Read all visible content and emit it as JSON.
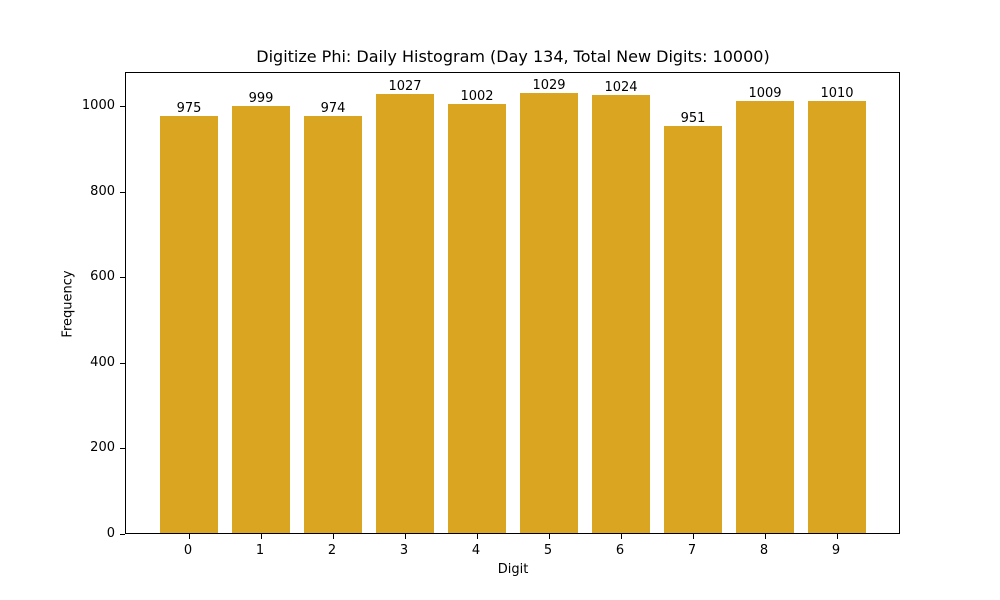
{
  "chart_data": {
    "type": "bar",
    "title": "Digitize Phi: Daily Histogram (Day 134, Total New Digits: 10000)",
    "xlabel": "Digit",
    "ylabel": "Frequency",
    "categories": [
      "0",
      "1",
      "2",
      "3",
      "4",
      "5",
      "6",
      "7",
      "8",
      "9"
    ],
    "values": [
      975,
      999,
      974,
      1027,
      1002,
      1029,
      1024,
      951,
      1009,
      1010
    ],
    "bar_labels": [
      "975",
      "999",
      "974",
      "1027",
      "1002",
      "1029",
      "1024",
      "951",
      "1009",
      "1010"
    ],
    "yticks": [
      0,
      200,
      400,
      600,
      800,
      1000
    ],
    "ytick_labels": [
      "0",
      "200",
      "400",
      "600",
      "800",
      "1000"
    ],
    "ylim": [
      0,
      1080
    ],
    "grid": false,
    "legend": null,
    "bar_color": "#daa520"
  }
}
